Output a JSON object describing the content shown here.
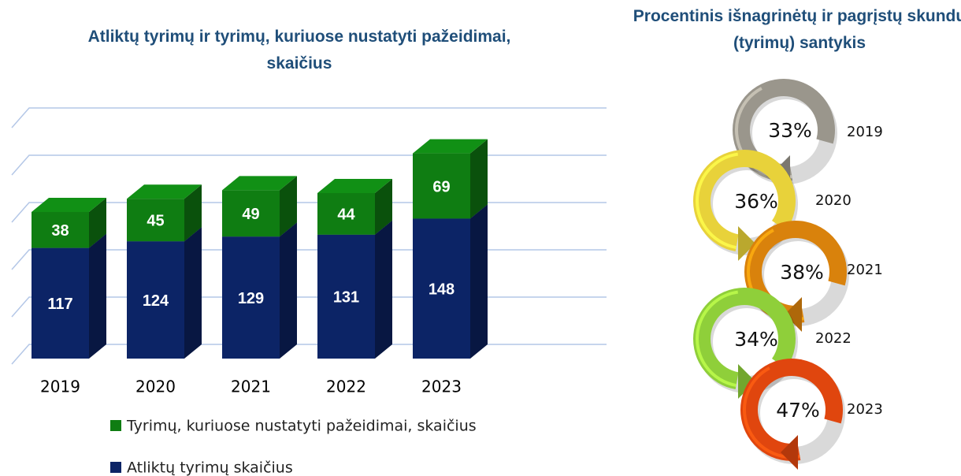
{
  "chart_data": [
    {
      "type": "bar",
      "title": "Atliktų tyrimų ir tyrimų, kuriuose nustatyti pažeidimai, skaičius",
      "categories": [
        "2019",
        "2020",
        "2021",
        "2022",
        "2023"
      ],
      "stacked": true,
      "series": [
        {
          "name": "Atliktų tyrimų skaičius",
          "color": "#0c2466",
          "values": [
            117,
            124,
            129,
            131,
            148
          ]
        },
        {
          "name": "Tyrimų, kuriuose nustatyti pažeidimai, skaičius",
          "color": "#0f7d12",
          "values": [
            38,
            45,
            49,
            44,
            69
          ]
        }
      ],
      "ylim": [
        0,
        250
      ],
      "yticks": [
        0,
        50,
        100,
        150,
        200,
        250
      ],
      "grid": true
    },
    {
      "type": "rings",
      "title": "Procentinis išnagrinėtų ir pagrįstų skundų (tyrimų) santykis",
      "categories": [
        "2019",
        "2020",
        "2021",
        "2022",
        "2023"
      ],
      "values": [
        33,
        36,
        38,
        34,
        47
      ],
      "value_labels": [
        "33%",
        "36%",
        "38%",
        "34%",
        "47%"
      ],
      "colors": [
        "#9a968c",
        "#e8d23a",
        "#d9820c",
        "#8fcf3a",
        "#e0460e"
      ]
    }
  ]
}
